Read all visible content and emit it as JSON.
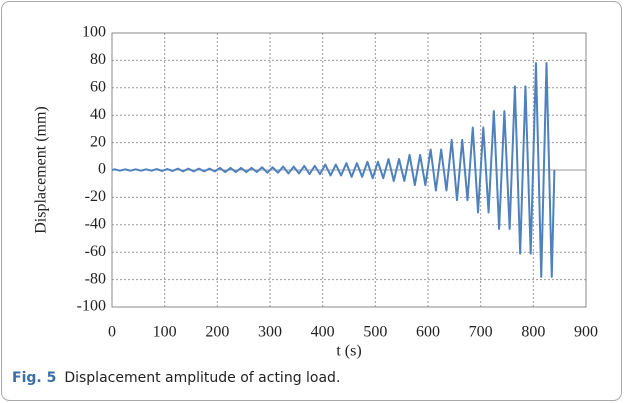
{
  "chart_data": {
    "type": "line",
    "x_label": "t (s)",
    "y_label": "Displacement (mm)",
    "x": [
      0,
      5,
      15,
      25,
      35,
      45,
      55,
      65,
      75,
      85,
      95,
      105,
      115,
      125,
      135,
      145,
      155,
      165,
      175,
      185,
      195,
      205,
      215,
      225,
      235,
      245,
      255,
      265,
      275,
      285,
      295,
      305,
      315,
      325,
      335,
      345,
      355,
      365,
      375,
      385,
      395,
      405,
      415,
      425,
      435,
      445,
      455,
      465,
      475,
      485,
      495,
      505,
      515,
      525,
      535,
      545,
      555,
      565,
      575,
      585,
      595,
      605,
      615,
      625,
      635,
      645,
      655,
      665,
      675,
      685,
      695,
      705,
      715,
      725,
      735,
      745,
      755,
      765,
      775,
      785,
      795,
      805,
      815,
      825,
      835,
      840
    ],
    "series": [
      {
        "color": "#4f81bd",
        "values": [
          0,
          0.5,
          -0.5,
          0.5,
          -0.5,
          0.5,
          -0.5,
          0.5,
          -0.5,
          0.7,
          -0.7,
          0.7,
          -0.7,
          1,
          -1,
          1,
          -1,
          1,
          -1,
          1,
          -1,
          1.5,
          -1.5,
          1.5,
          -1.5,
          1.5,
          -1.5,
          1.5,
          -1.5,
          2,
          -2,
          2,
          -2,
          2.5,
          -2.5,
          2.5,
          -2.5,
          3,
          -3,
          3,
          -3,
          4,
          -4,
          4,
          -4,
          5,
          -5,
          5,
          -5,
          6,
          -6,
          6,
          -6,
          8,
          -8,
          8,
          -8,
          11,
          -11,
          11,
          -11,
          15,
          -15,
          15,
          -15,
          22,
          -22,
          22,
          -22,
          31,
          -31,
          31,
          -31,
          43,
          -43,
          43,
          -43,
          61,
          -61,
          61,
          -61,
          78,
          -78,
          78,
          -78,
          0
        ]
      }
    ],
    "xlim": [
      0,
      900
    ],
    "xticks": [
      0,
      100,
      200,
      300,
      400,
      500,
      600,
      700,
      800,
      900
    ],
    "ylim": [
      -100,
      100
    ],
    "yticks": [
      100,
      80,
      60,
      40,
      20,
      0,
      -20,
      -40,
      -60,
      -80,
      -100
    ],
    "grid": true
  },
  "caption": {
    "label": "Fig. 5",
    "text": "Displacement amplitude of acting load."
  }
}
